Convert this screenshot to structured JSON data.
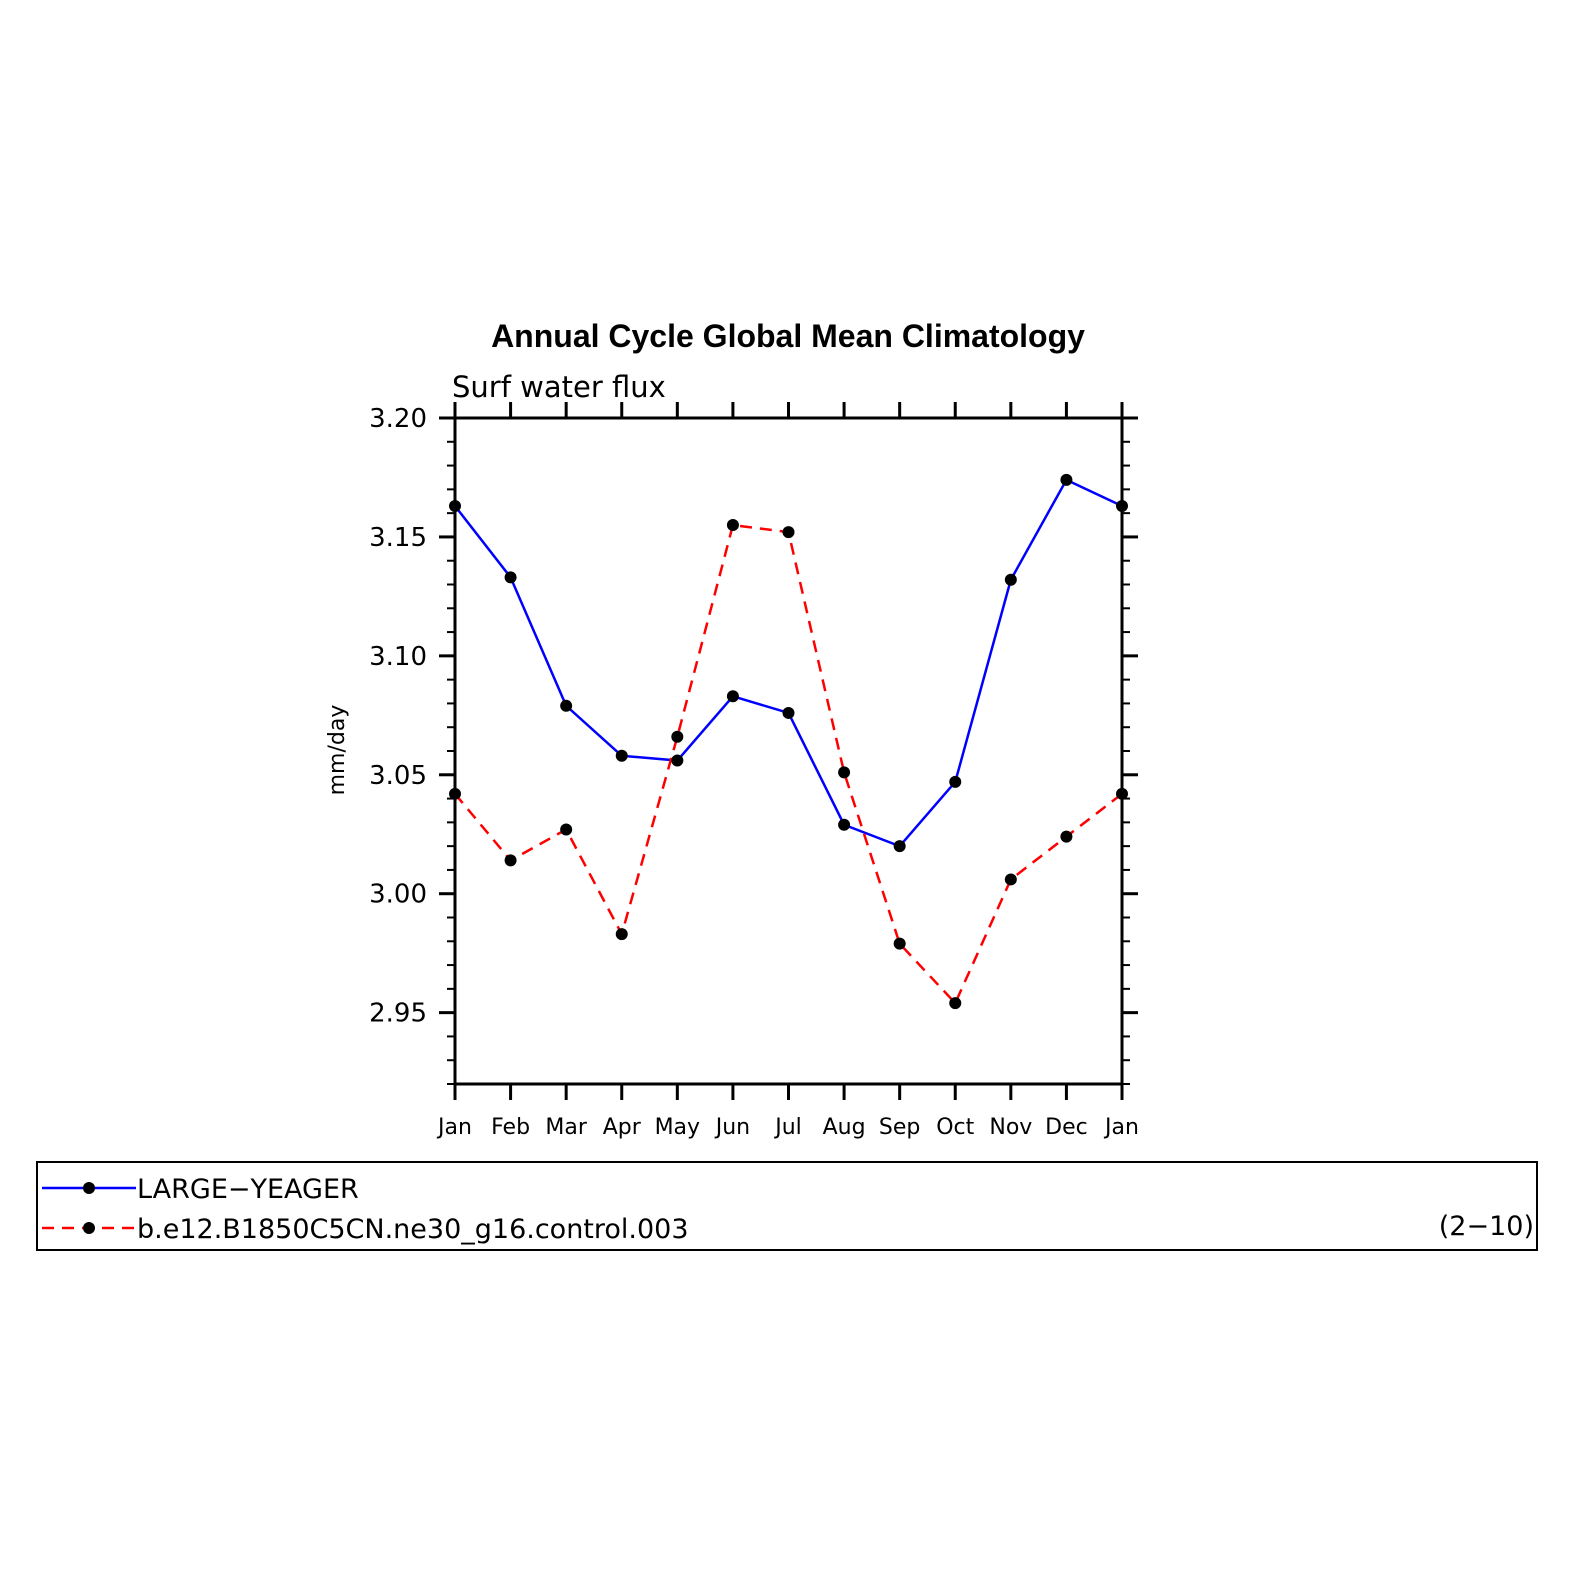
{
  "chart_data": {
    "type": "line",
    "title": "Annual Cycle Global Mean Climatology",
    "subtitle": "Surf water flux",
    "ylabel": "mm/day",
    "xlabel": "",
    "categories": [
      "Jan",
      "Feb",
      "Mar",
      "Apr",
      "May",
      "Jun",
      "Jul",
      "Aug",
      "Sep",
      "Oct",
      "Nov",
      "Dec",
      "Jan"
    ],
    "ylim": [
      2.92,
      3.2
    ],
    "yticks": [
      2.95,
      3.0,
      3.05,
      3.1,
      3.15,
      3.2
    ],
    "ytick_labels": [
      "2.95",
      "3.00",
      "3.05",
      "3.10",
      "3.15",
      "3.20"
    ],
    "series": [
      {
        "name": "LARGE−YEAGER",
        "color": "#0000ff",
        "dash": "solid",
        "values": [
          3.163,
          3.133,
          3.079,
          3.058,
          3.056,
          3.083,
          3.076,
          3.029,
          3.02,
          3.047,
          3.132,
          3.174,
          3.163
        ]
      },
      {
        "name": "b.e12.B1850C5CN.ne30_g16.control.003",
        "color": "#ff0000",
        "dash": "dashed",
        "values": [
          3.042,
          3.014,
          3.027,
          2.983,
          3.066,
          3.155,
          3.152,
          3.051,
          2.979,
          2.954,
          3.006,
          3.024,
          3.042
        ]
      }
    ],
    "marker_color": "#000000",
    "grid": false,
    "legend_position": "bottom"
  },
  "legend": {
    "note": "(2−10)"
  }
}
